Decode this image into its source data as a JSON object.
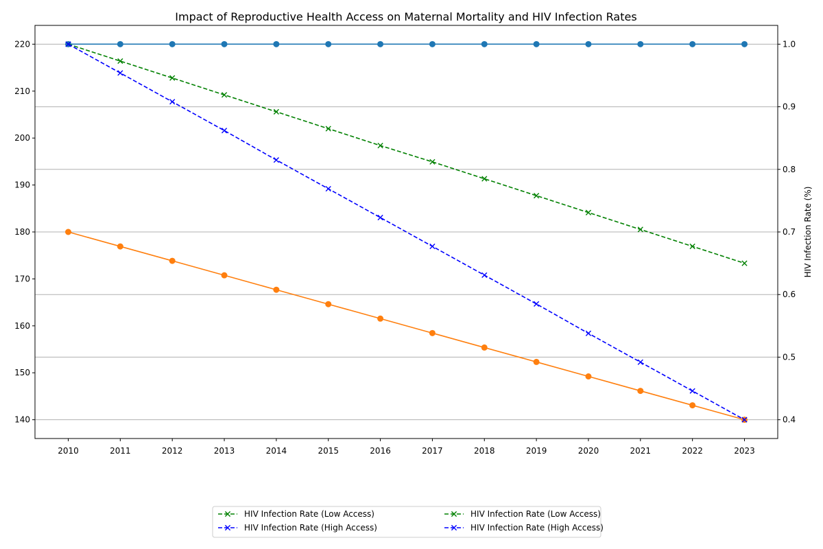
{
  "chart_data": {
    "type": "line",
    "title": "Impact of Reproductive Health Access on Maternal Mortality and HIV Infection Rates",
    "x": [
      "2010",
      "2011",
      "2012",
      "2013",
      "2014",
      "2015",
      "2016",
      "2017",
      "2018",
      "2019",
      "2020",
      "2021",
      "2022",
      "2023"
    ],
    "left_axis": {
      "label": "",
      "ylim": [
        136,
        224
      ],
      "ticks": [
        "140",
        "150",
        "160",
        "170",
        "180",
        "190",
        "200",
        "210",
        "220"
      ]
    },
    "right_axis": {
      "label": "HIV Infection Rate (%)",
      "ylim": [
        0.37,
        1.03
      ],
      "ticks": [
        "0.4",
        "0.5",
        "0.6",
        "0.7",
        "0.8",
        "0.9",
        "1.0"
      ]
    },
    "grid": "horizontal grid lines at right-axis ticks",
    "legend_position": "bottom-center",
    "series": [
      {
        "axis": "left",
        "color": "#1f77b4",
        "style": "solid",
        "marker": "circle",
        "values": [
          220,
          220,
          220,
          220,
          220,
          220,
          220,
          220,
          220,
          220,
          220,
          220,
          220,
          220
        ]
      },
      {
        "axis": "left",
        "color": "#ff7f0e",
        "style": "solid",
        "marker": "circle",
        "values": [
          180,
          176.92,
          173.85,
          170.77,
          167.69,
          164.62,
          161.54,
          158.46,
          155.38,
          152.31,
          149.23,
          146.15,
          143.08,
          140
        ]
      },
      {
        "name": "HIV Infection Rate (Low Access)",
        "axis": "right",
        "color": "#008000",
        "style": "dashed",
        "marker": "x",
        "values": [
          1.0,
          0.973,
          0.946,
          0.919,
          0.892,
          0.865,
          0.838,
          0.812,
          0.785,
          0.758,
          0.731,
          0.704,
          0.677,
          0.65
        ]
      },
      {
        "name": "HIV Infection Rate (High Access)",
        "axis": "right",
        "color": "#0000ff",
        "style": "dashed",
        "marker": "x",
        "values": [
          1.0,
          0.954,
          0.908,
          0.862,
          0.815,
          0.769,
          0.723,
          0.677,
          0.631,
          0.585,
          0.538,
          0.492,
          0.446,
          0.4
        ]
      }
    ],
    "legend": [
      {
        "label": "HIV Infection Rate (Low Access)",
        "color": "#008000"
      },
      {
        "label": "HIV Infection Rate (High Access)",
        "color": "#0000ff"
      },
      {
        "label": "HIV Infection Rate (Low Access)",
        "color": "#008000"
      },
      {
        "label": "HIV Infection Rate (High Access)",
        "color": "#0000ff"
      }
    ]
  }
}
